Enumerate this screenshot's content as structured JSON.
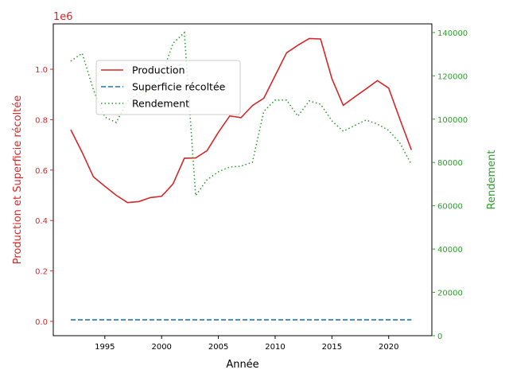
{
  "chart_data": {
    "type": "line",
    "xlabel": "Année",
    "ylabel_left": "Production et Superficie récoltée",
    "ylabel_right": "Rendement",
    "left_offset_label": "1e6",
    "xlim": [
      1990.46,
      2023.8
    ],
    "ylim_left": [
      -0.0568,
      1.18
    ],
    "ylim_right": [
      0,
      144000
    ],
    "x_ticks": [
      1995,
      2000,
      2005,
      2010,
      2015,
      2020
    ],
    "x_tick_labels": [
      "1995",
      "2000",
      "2005",
      "2010",
      "2015",
      "2020"
    ],
    "left_ticks": [
      0,
      0.2,
      0.4,
      0.6,
      0.8,
      1.0
    ],
    "left_tick_labels": [
      "0.0",
      "0.2",
      "0.4",
      "0.6",
      "0.8",
      "1.0"
    ],
    "right_ticks": [
      0,
      20000,
      40000,
      60000,
      80000,
      100000,
      120000,
      140000
    ],
    "right_tick_labels": [
      "0",
      "20000",
      "40000",
      "60000",
      "80000",
      "100000",
      "120000",
      "140000"
    ],
    "left_color": "#d62728",
    "right_color": "#2ca02c",
    "legend_position": "upper-left-center",
    "x": [
      1992,
      1993,
      1994,
      1995,
      1996,
      1997,
      1998,
      1999,
      2000,
      2001,
      2002,
      2003,
      2004,
      2005,
      2006,
      2007,
      2008,
      2009,
      2010,
      2011,
      2012,
      2013,
      2014,
      2015,
      2016,
      2017,
      2018,
      2019,
      2020,
      2021,
      2022
    ],
    "series": [
      {
        "name": "Production",
        "axis": "left",
        "color": "#d62728",
        "style": "solid",
        "values": [
          760000,
          670000,
          573000,
          536000,
          500000,
          471000,
          475000,
          491000,
          496000,
          545000,
          647000,
          648000,
          677000,
          750000,
          815000,
          808000,
          856000,
          885000,
          975000,
          1065000,
          1095000,
          1122000,
          1120000,
          962000,
          857000,
          890000,
          922000,
          955000,
          925000,
          800000,
          680000
        ]
      },
      {
        "name": "Superficie récoltée",
        "axis": "left",
        "color": "#1f77b4",
        "style": "dashed",
        "values": [
          6000,
          6000,
          6000,
          6000,
          6000,
          6000,
          6000,
          6000,
          6000,
          6000,
          6000,
          6000,
          6000,
          6000,
          6000,
          6000,
          6000,
          6000,
          6000,
          6000,
          6000,
          6000,
          6000,
          6000,
          6000,
          6000,
          6000,
          6000,
          6000,
          6000,
          6000
        ]
      },
      {
        "name": "Rendement",
        "axis": "right",
        "color": "#2ca02c",
        "style": "dotted",
        "values": [
          126800,
          130400,
          113500,
          101000,
          98500,
          108400,
          112000,
          114000,
          120000,
          135000,
          140000,
          64700,
          72000,
          75700,
          77900,
          78300,
          80100,
          103600,
          108800,
          108800,
          101400,
          108400,
          106900,
          99200,
          94400,
          97000,
          99600,
          97700,
          94800,
          88900,
          79000
        ]
      }
    ]
  }
}
